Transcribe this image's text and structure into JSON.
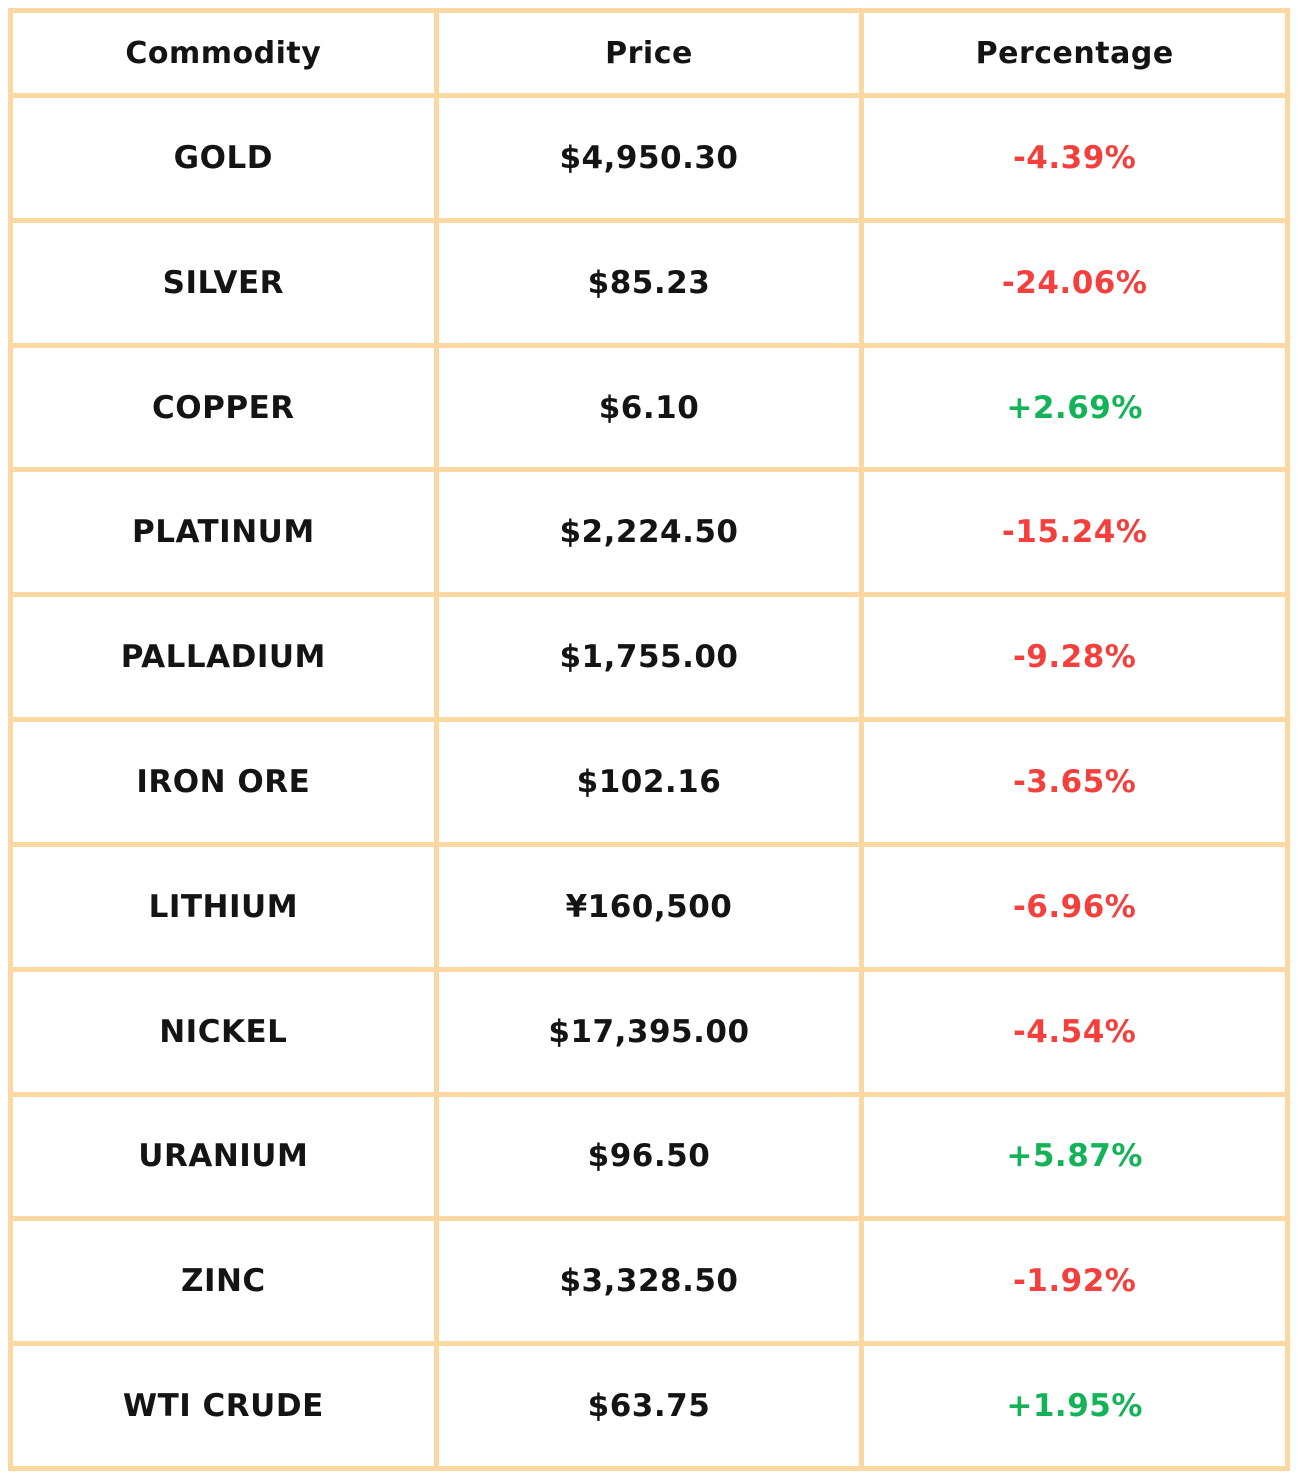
{
  "colors": {
    "border": "#FBD8A1",
    "negative": "#F4403D",
    "positive": "#15B357",
    "text": "#141414"
  },
  "chart_data": {
    "type": "table",
    "columns": [
      "Commodity",
      "Price",
      "Percentage"
    ],
    "rows": [
      {
        "commodity": "GOLD",
        "price": "$4,950.30",
        "percentage": "-4.39%",
        "direction": "down"
      },
      {
        "commodity": "SILVER",
        "price": "$85.23",
        "percentage": "-24.06%",
        "direction": "down"
      },
      {
        "commodity": "COPPER",
        "price": "$6.10",
        "percentage": "+2.69%",
        "direction": "up"
      },
      {
        "commodity": "PLATINUM",
        "price": "$2,224.50",
        "percentage": "-15.24%",
        "direction": "down"
      },
      {
        "commodity": "PALLADIUM",
        "price": "$1,755.00",
        "percentage": "-9.28%",
        "direction": "down"
      },
      {
        "commodity": "IRON ORE",
        "price": "$102.16",
        "percentage": "-3.65%",
        "direction": "down"
      },
      {
        "commodity": "LITHIUM",
        "price": "¥160,500",
        "percentage": "-6.96%",
        "direction": "down"
      },
      {
        "commodity": "NICKEL",
        "price": "$17,395.00",
        "percentage": "-4.54%",
        "direction": "down"
      },
      {
        "commodity": "URANIUM",
        "price": "$96.50",
        "percentage": "+5.87%",
        "direction": "up"
      },
      {
        "commodity": "ZINC",
        "price": "$3,328.50",
        "percentage": "-1.92%",
        "direction": "down"
      },
      {
        "commodity": "WTI CRUDE",
        "price": "$63.75",
        "percentage": "+1.95%",
        "direction": "up"
      }
    ]
  }
}
